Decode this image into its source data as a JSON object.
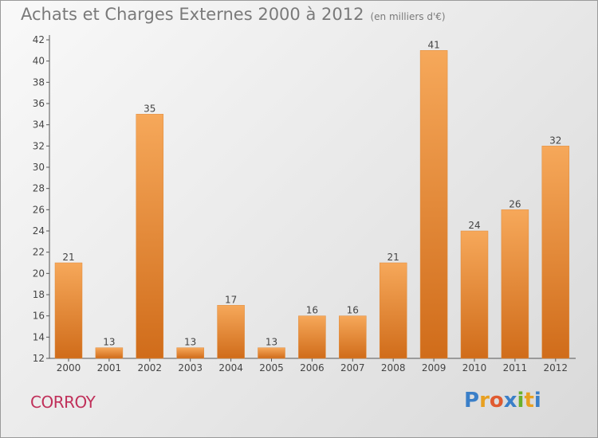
{
  "chart_data": {
    "type": "bar",
    "title": "Achats et Charges Externes 2000 à 2012",
    "subtitle": "(en milliers d'€)",
    "categories": [
      "2000",
      "2001",
      "2002",
      "2003",
      "2004",
      "2005",
      "2006",
      "2007",
      "2008",
      "2009",
      "2010",
      "2011",
      "2012"
    ],
    "values": [
      21,
      13,
      35,
      13,
      17,
      13,
      16,
      16,
      21,
      41,
      24,
      26,
      32
    ],
    "ylim": [
      12,
      42
    ],
    "yticks": [
      12,
      14,
      16,
      18,
      20,
      22,
      24,
      26,
      28,
      30,
      32,
      34,
      36,
      38,
      40,
      42
    ],
    "grid": false,
    "xlabel": "",
    "ylabel": ""
  },
  "footer": {
    "commune": "CORROY",
    "brand": [
      "P",
      "r",
      "o",
      "x",
      "i",
      "t",
      "i"
    ]
  },
  "colors": {
    "bar_top": "#f6a85a",
    "bar_bottom": "#d06c1a",
    "commune": "#c0305a",
    "brand": [
      "#3a7fc8",
      "#e8a020",
      "#e05a30",
      "#3a7fc8",
      "#6ab02c",
      "#e8a020",
      "#3a7fc8"
    ]
  }
}
